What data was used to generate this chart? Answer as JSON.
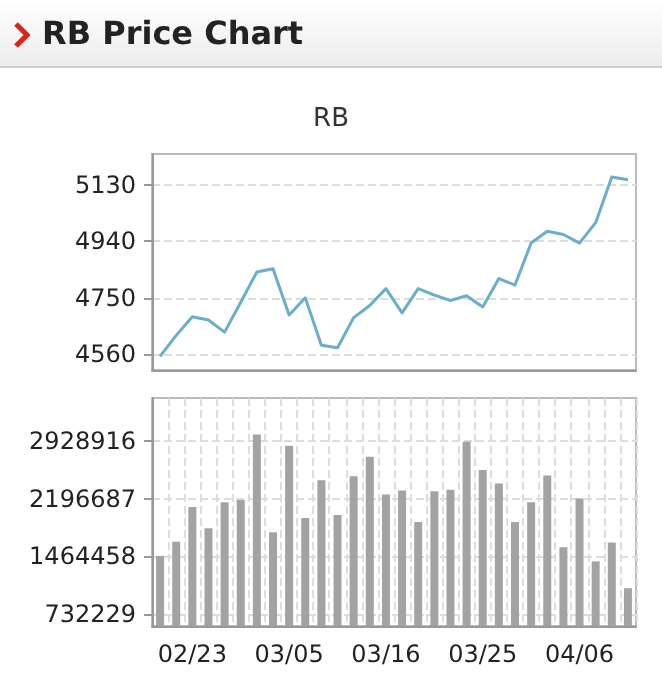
{
  "chart_data": [
    {
      "type": "line",
      "title": "RB Price Chart",
      "subtitle": "RB",
      "categories": [
        null,
        null,
        null,
        null,
        null,
        null,
        null,
        null,
        null,
        null,
        null,
        null,
        null,
        null,
        null,
        null,
        null,
        null,
        null,
        null,
        null,
        null,
        null,
        null,
        null,
        null,
        null,
        null,
        null,
        null
      ],
      "series": [
        {
          "color": "#6aaec8",
          "values": [
            4551,
            4622,
            4685,
            4674,
            4633,
            4734,
            4836,
            4847,
            4691,
            4749,
            4589,
            4580,
            4682,
            4723,
            4780,
            4698,
            4780,
            4758,
            4740,
            4756,
            4718,
            4814,
            4792,
            4934,
            4974,
            4963,
            4934,
            5003,
            5157,
            5148
          ]
        }
      ],
      "ylim": [
        4505,
        5235
      ],
      "yticks": [
        4560,
        4750,
        4940,
        5130
      ],
      "grid": "y",
      "tick_labels": "y"
    },
    {
      "type": "bar",
      "categories": [
        null,
        null,
        "02/23",
        null,
        null,
        null,
        null,
        null,
        "03/05",
        null,
        null,
        null,
        null,
        null,
        "03/16",
        null,
        null,
        null,
        null,
        null,
        "03/25",
        null,
        null,
        null,
        null,
        null,
        "04/06",
        null,
        null,
        null
      ],
      "series": [
        {
          "color": "#a3a3a3",
          "values": [
            1470000,
            1650000,
            2090000,
            1820000,
            2150000,
            2180000,
            3010000,
            1770000,
            2870000,
            1950000,
            2430000,
            1990000,
            2480000,
            2730000,
            2250000,
            2300000,
            1900000,
            2290000,
            2310000,
            2920000,
            2560000,
            2390000,
            1900000,
            2150000,
            2490000,
            1580000,
            2200000,
            1400000,
            1640000,
            1060000
          ]
        }
      ],
      "ylim": [
        580000,
        3475000
      ],
      "yticks": [
        732229,
        1464458,
        2196687,
        2928916
      ],
      "grid": true
    }
  ]
}
